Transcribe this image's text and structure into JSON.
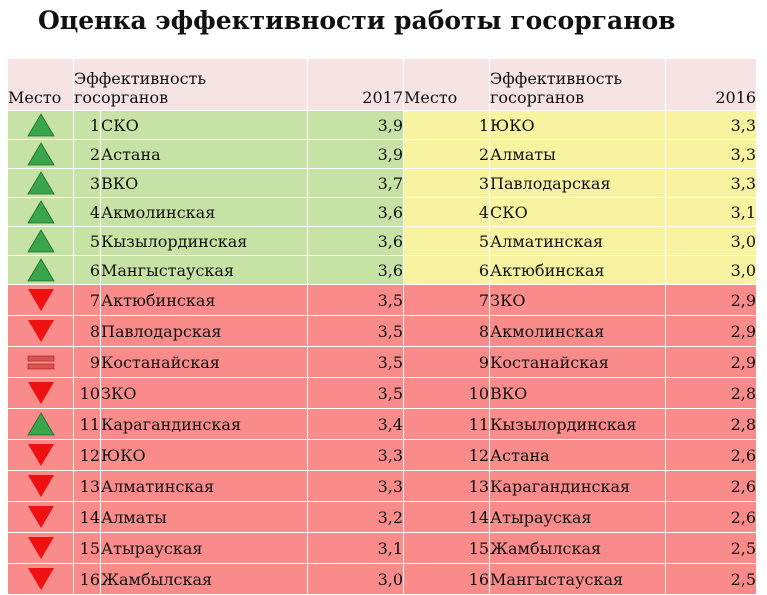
{
  "title": "Оценка эффективности работы госорганов",
  "colors": {
    "green": "#c6e3a5",
    "yellow": "#f8f3a1",
    "red": "#f98b8b",
    "header": "#f6e4e4",
    "up": "#3aa54a",
    "down": "#ee1111",
    "same": "#d9534f"
  },
  "chart_data": {
    "type": "table",
    "columns": [
      "Место",
      "Эффективность госорганов",
      "2017",
      "Место",
      "Эффективность госорганов",
      "2016"
    ],
    "header": {
      "place": "Место",
      "eff_line1": "Эффективность",
      "eff_line2": "госорганов",
      "year_2017": "2017",
      "year_2016": "2016"
    },
    "rows": [
      {
        "trend": "up",
        "place17": "1",
        "name17": "СКО",
        "val17": "3,9",
        "place16": "1",
        "name16": "ЮКО",
        "val16": "3,3"
      },
      {
        "trend": "up",
        "place17": "2",
        "name17": "Астана",
        "val17": "3,9",
        "place16": "2",
        "name16": "Алматы",
        "val16": "3,3"
      },
      {
        "trend": "up",
        "place17": "3",
        "name17": "ВКО",
        "val17": "3,7",
        "place16": "3",
        "name16": "Павлодарская",
        "val16": "3,3"
      },
      {
        "trend": "up",
        "place17": "4",
        "name17": "Акмолинская",
        "val17": "3,6",
        "place16": "4",
        "name16": "СКО",
        "val16": "3,1"
      },
      {
        "trend": "up",
        "place17": "5",
        "name17": "Кызылординская",
        "val17": "3,6",
        "place16": "5",
        "name16": "Алматинская",
        "val16": "3,0"
      },
      {
        "trend": "up",
        "place17": "6",
        "name17": "Мангыстауская",
        "val17": "3,6",
        "place16": "6",
        "name16": "Актюбинская",
        "val16": "3,0"
      },
      {
        "trend": "down",
        "place17": "7",
        "name17": "Актюбинская",
        "val17": "3,5",
        "place16": "7",
        "name16": "ЗКО",
        "val16": "2,9"
      },
      {
        "trend": "down",
        "place17": "8",
        "name17": "Павлодарская",
        "val17": "3,5",
        "place16": "8",
        "name16": "Акмолинская",
        "val16": "2,9"
      },
      {
        "trend": "same",
        "place17": "9",
        "name17": "Костанайская",
        "val17": "3,5",
        "place16": "9",
        "name16": "Костанайская",
        "val16": "2,9"
      },
      {
        "trend": "down",
        "place17": "10",
        "name17": "ЗКО",
        "val17": "3,5",
        "place16": "10",
        "name16": "ВКО",
        "val16": "2,8"
      },
      {
        "trend": "up",
        "place17": "11",
        "name17": "Карагандинская",
        "val17": "3,4",
        "place16": "11",
        "name16": "Кызылординская",
        "val16": "2,8"
      },
      {
        "trend": "down",
        "place17": "12",
        "name17": "ЮКО",
        "val17": "3,3",
        "place16": "12",
        "name16": "Астана",
        "val16": "2,6"
      },
      {
        "trend": "down",
        "place17": "13",
        "name17": "Алматинская",
        "val17": "3,3",
        "place16": "13",
        "name16": "Карагандинская",
        "val16": "2,6"
      },
      {
        "trend": "down",
        "place17": "14",
        "name17": "Алматы",
        "val17": "3,2",
        "place16": "14",
        "name16": "Атырауская",
        "val16": "2,6"
      },
      {
        "trend": "down",
        "place17": "15",
        "name17": "Атырауская",
        "val17": "3,1",
        "place16": "15",
        "name16": "Жамбылская",
        "val16": "2,5"
      },
      {
        "trend": "down",
        "place17": "16",
        "name17": "Жамбылская",
        "val17": "3,0",
        "place16": "16",
        "name16": "Мангыстауская",
        "val16": "2,5"
      }
    ]
  }
}
